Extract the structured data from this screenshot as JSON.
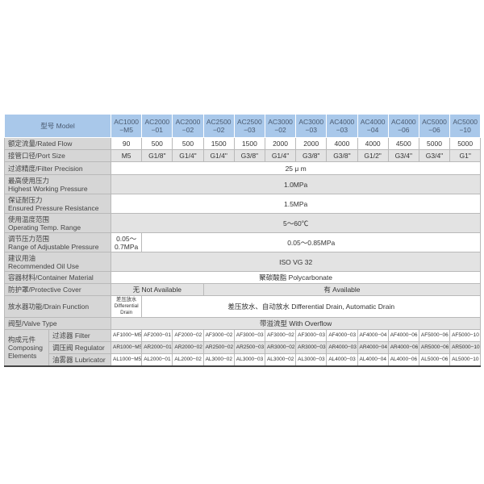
{
  "header": {
    "label": "型号 Model",
    "models": [
      "AC1000\n−M5",
      "AC2000\n−01",
      "AC2000\n−02",
      "AC2500\n−02",
      "AC2500\n−03",
      "AC3000\n−02",
      "AC3000\n−03",
      "AC4000\n−03",
      "AC4000\n−04",
      "AC4000\n−06",
      "AC5000\n−06",
      "AC5000\n−10"
    ]
  },
  "rated_flow": {
    "label": "额定流量/Rated Flow",
    "values": [
      "90",
      "500",
      "500",
      "1500",
      "1500",
      "2000",
      "2000",
      "4000",
      "4000",
      "4500",
      "5000",
      "5000"
    ]
  },
  "port_size": {
    "label": "接管口径/Port Size",
    "values": [
      "M5",
      "G1/8\"",
      "G1/4\"",
      "G1/4\"",
      "G3/8\"",
      "G1/4\"",
      "G3/8\"",
      "G3/8\"",
      "G1/2\"",
      "G3/4\"",
      "G3/4\"",
      "G1\""
    ]
  },
  "filter_precision": {
    "label": "过滤精度/Filter Precision",
    "value": "25 μ m"
  },
  "highest_pressure": {
    "label_cn": "最高使用压力",
    "label_en": "Highest Working Pressure",
    "value": "1.0MPa"
  },
  "ensured_pressure": {
    "label_cn": "保证耐压力",
    "label_en": "Ensured Pressure Resistance",
    "value": "1.5MPa"
  },
  "temp_range": {
    "label_cn": "使用温度范围",
    "label_en": "Operating Temp. Range",
    "value": "5～60℃"
  },
  "adjustable": {
    "label_cn": "调节压力范围",
    "label_en": "Range of Adjustable Pressure",
    "first": "0.05～\n0.7MPa",
    "rest": "0.05～0.85MPa"
  },
  "oil": {
    "label_cn": "建议用油",
    "label_en": "Recommended Oil Use",
    "value": "ISO VG 32"
  },
  "container": {
    "label": "容器材料/Container Material",
    "value": "聚碳酸脂  Polycarbonate"
  },
  "cover": {
    "label": "防护罩/Protective Cover",
    "none": "无  Not Available",
    "avail": "有  Available"
  },
  "drain": {
    "label": "放水器功能/Drain Function",
    "first": "差压放水\nDifferential\nDrain",
    "rest": "差压放水、自动放水  Differential Drain, Automatic Drain"
  },
  "valve": {
    "label": "阀型/Valve Type",
    "value": "带溢流型  With Overflow"
  },
  "composing": {
    "label": "构成元件\nComposing\nElements",
    "rows": [
      {
        "label": "过滤器 Filter",
        "values": [
          "AF1000−M5",
          "AF2000−01",
          "AF2000−02",
          "AF3000−02",
          "AF3000−03",
          "AF3000−02",
          "AF3000−03",
          "AF4000−03",
          "AF4000−04",
          "AF4000−06",
          "AF5000−06",
          "AF5000−10"
        ]
      },
      {
        "label": "调压阀 Regulator",
        "values": [
          "AR1000−M5",
          "AR2000−01",
          "AR2000−02",
          "AR2500−02",
          "AR2500−03",
          "AR3000−02",
          "AR3000−03",
          "AR4000−03",
          "AR4000−04",
          "AR4000−06",
          "AR5000−06",
          "AR5000−10"
        ]
      },
      {
        "label": "油雾器 Lubricator",
        "values": [
          "AL1000−M5",
          "AL2000−01",
          "AL2000−02",
          "AL3000−02",
          "AL3000−03",
          "AL3000−02",
          "AL3000−03",
          "AL4000−03",
          "AL4000−04",
          "AL4000−06",
          "AL5000−06",
          "AL5000−10"
        ]
      }
    ]
  },
  "colors": {
    "header": "#a9c8ea",
    "label": "#d6d6d6",
    "alt_row": "#e3e3e3"
  }
}
